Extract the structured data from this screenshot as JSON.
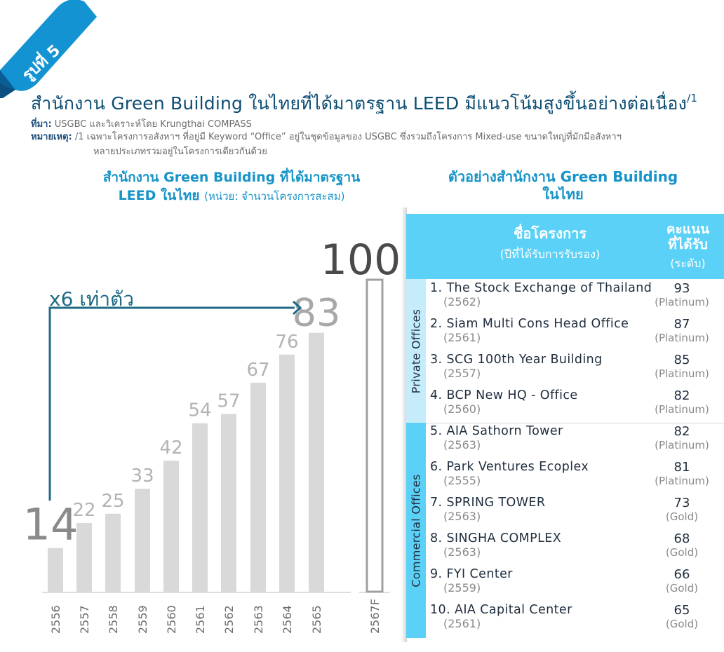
{
  "badge": "รูปที่ 5",
  "title": "สำนักงาน Green Building ในไทยที่ได้มาตรฐาน LEED มีแนวโน้มสูงขึ้นอย่างต่อเนื่อง",
  "title_sup": "/1",
  "source_label": "ที่มา:",
  "source_text": "USGBC และวิเคราะห์โดย Krungthai COMPASS",
  "note_label": "หมายเหตุ:",
  "note_text": "/1 เฉพาะโครงการอสังหาฯ ที่อยู่มี Keyword “Office” อยู่ในชุดข้อมูลของ USGBC ซึ่งรวมถึงโครงการ Mixed-use ขนาดใหญ่ที่มักมีอสังหาฯ",
  "note_text2": "หลายประเภทรวมอยู่ในโครงการเดียวกันด้วย",
  "chart_title_line1": "สำนักงาน Green Building ที่ได้มาตรฐาน",
  "chart_title_line2": "LEED ในไทย",
  "chart_title_unit": "(หน่วย: จำนวนโครงการสะสม)",
  "chart_data": {
    "type": "bar",
    "title": "สำนักงาน Green Building ที่ได้มาตรฐาน LEED ในไทย",
    "unit": "(หน่วย: จำนวนโครงการสะสม)",
    "categories": [
      "2556",
      "2557",
      "2558",
      "2559",
      "2560",
      "2561",
      "2562",
      "2563",
      "2564",
      "2565",
      "2567F"
    ],
    "values": [
      14,
      22,
      25,
      33,
      42,
      54,
      57,
      67,
      76,
      83,
      100
    ],
    "forecast_index": 10,
    "annotation": "x6 เท่าตัว",
    "bar_color": "#d9d9d9",
    "label_color": "#b3b3b3",
    "arrow_color": "#1f6a85",
    "highlight_color": "#4a4a4a"
  },
  "table": {
    "title_line1": "ตัวอย่างสำนักงาน Green Building",
    "title_line2": "ในไทย",
    "header_name": "ชื่อโครงการ",
    "header_name_sub": "(ปีที่ได้รับการรับรอง)",
    "header_score_line1": "คะแนน",
    "header_score_line2": "ที่ได้รับ",
    "header_score_sub": "(ระดับ)",
    "group_private": "Private Offices",
    "group_commercial": "Commercial Offices",
    "header_color": "#5cd1f7",
    "rows": [
      {
        "name": "1. The Stock Exchange of Thailand",
        "year": "(2562)",
        "score": "93",
        "level": "(Platinum)"
      },
      {
        "name": "2. Siam Multi Cons Head Office",
        "year": "(2561)",
        "score": "87",
        "level": "(Platinum)"
      },
      {
        "name": "3. SCG 100th Year Building",
        "year": "(2557)",
        "score": "85",
        "level": "(Platinum)"
      },
      {
        "name": "4. BCP New HQ - Office",
        "year": "(2560)",
        "score": "82",
        "level": "(Platinum)"
      },
      {
        "name": "5. AIA Sathorn Tower",
        "year": "(2563)",
        "score": "82",
        "level": "(Platinum)"
      },
      {
        "name": "6. Park Ventures Ecoplex",
        "year": "(2555)",
        "score": "81",
        "level": "(Platinum)"
      },
      {
        "name": "7. SPRING TOWER",
        "year": "(2563)",
        "score": "73",
        "level": "(Gold)"
      },
      {
        "name": "8. SINGHA COMPLEX",
        "year": "(2563)",
        "score": "68",
        "level": "(Gold)"
      },
      {
        "name": "9. FYI Center",
        "year": "(2559)",
        "score": "66",
        "level": "(Gold)"
      },
      {
        "name": "10. AIA Capital Center",
        "year": "(2561)",
        "score": "65",
        "level": "(Gold)"
      }
    ]
  }
}
